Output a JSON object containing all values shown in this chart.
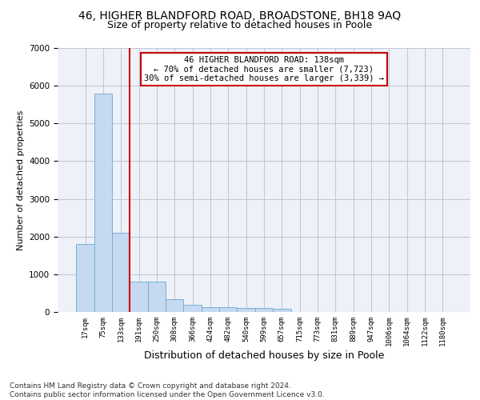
{
  "title": "46, HIGHER BLANDFORD ROAD, BROADSTONE, BH18 9AQ",
  "subtitle": "Size of property relative to detached houses in Poole",
  "xlabel": "Distribution of detached houses by size in Poole",
  "ylabel": "Number of detached properties",
  "bin_labels": [
    "17sqm",
    "75sqm",
    "133sqm",
    "191sqm",
    "250sqm",
    "308sqm",
    "366sqm",
    "424sqm",
    "482sqm",
    "540sqm",
    "599sqm",
    "657sqm",
    "715sqm",
    "773sqm",
    "831sqm",
    "889sqm",
    "947sqm",
    "1006sqm",
    "1064sqm",
    "1122sqm",
    "1180sqm"
  ],
  "bar_values": [
    1800,
    5800,
    2100,
    800,
    800,
    350,
    200,
    130,
    120,
    100,
    100,
    80,
    0,
    0,
    0,
    0,
    0,
    0,
    0,
    0,
    0
  ],
  "bar_color": "#c5d9f0",
  "bar_edge_color": "#7aafd4",
  "property_line_index": 2,
  "property_line_color": "#cc0000",
  "annotation_text": "46 HIGHER BLANDFORD ROAD: 138sqm\n← 70% of detached houses are smaller (7,723)\n30% of semi-detached houses are larger (3,339) →",
  "annotation_box_color": "#cc0000",
  "annotation_text_color": "#000000",
  "ylim": [
    0,
    7000
  ],
  "yticks": [
    0,
    1000,
    2000,
    3000,
    4000,
    5000,
    6000,
    7000
  ],
  "grid_color": "#c0c8d8",
  "background_color": "#eef2f8",
  "footer_text": "Contains HM Land Registry data © Crown copyright and database right 2024.\nContains public sector information licensed under the Open Government Licence v3.0.",
  "title_fontsize": 10,
  "subtitle_fontsize": 9,
  "xlabel_fontsize": 9,
  "ylabel_fontsize": 8,
  "tick_fontsize": 6.5,
  "annotation_fontsize": 7.5,
  "footer_fontsize": 6.5
}
